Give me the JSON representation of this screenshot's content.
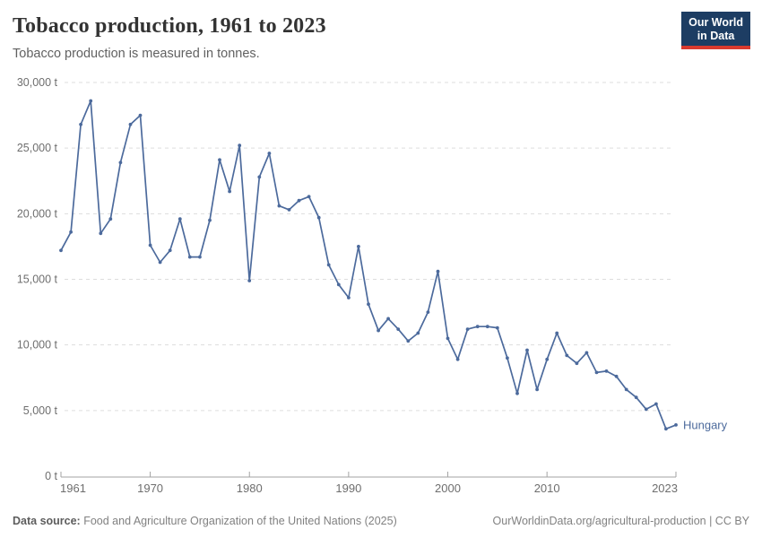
{
  "header": {
    "title": "Tobacco production, 1961 to 2023",
    "subtitle": "Tobacco production is measured in tonnes.",
    "logo": {
      "line1": "Our World",
      "line2": "in Data"
    }
  },
  "footer": {
    "datasource_label": "Data source:",
    "datasource_text": "Food and Agriculture Organization of the United Nations (2025)",
    "credit": "OurWorldinData.org/agricultural-production | CC BY"
  },
  "colors": {
    "line": "#4C6A9C",
    "series_label": "#4C6A9C",
    "grid": "#dddddd",
    "axis": "#a3a3a3",
    "tick_label": "#6e6e6e",
    "logo_bg": "#1d3d63",
    "logo_red": "#d93a2e"
  },
  "chart_data": {
    "type": "line",
    "title": "Tobacco production, 1961 to 2023",
    "subtitle": "Tobacco production is measured in tonnes.",
    "xlabel": "",
    "ylabel": "",
    "unit": "t",
    "xlim": [
      1961,
      2023
    ],
    "ylim": [
      0,
      30000
    ],
    "grid": "horizontal-dashed",
    "legend_position": "end-of-line-label",
    "x_ticks": [
      {
        "value": 1961,
        "label": "1961",
        "align": "start"
      },
      {
        "value": 1970,
        "label": "1970",
        "align": "middle"
      },
      {
        "value": 1980,
        "label": "1980",
        "align": "middle"
      },
      {
        "value": 1990,
        "label": "1990",
        "align": "middle"
      },
      {
        "value": 2000,
        "label": "2000",
        "align": "middle"
      },
      {
        "value": 2010,
        "label": "2010",
        "align": "middle"
      },
      {
        "value": 2023,
        "label": "2023",
        "align": "end"
      }
    ],
    "y_ticks": [
      {
        "value": 0,
        "label": "0 t"
      },
      {
        "value": 5000,
        "label": "5,000 t"
      },
      {
        "value": 10000,
        "label": "10,000 t"
      },
      {
        "value": 15000,
        "label": "15,000 t"
      },
      {
        "value": 20000,
        "label": "20,000 t"
      },
      {
        "value": 25000,
        "label": "25,000 t"
      },
      {
        "value": 30000,
        "label": "30,000 t"
      }
    ],
    "series": [
      {
        "name": "Hungary",
        "x": [
          1961,
          1962,
          1963,
          1964,
          1965,
          1966,
          1967,
          1968,
          1969,
          1970,
          1971,
          1972,
          1973,
          1974,
          1975,
          1976,
          1977,
          1978,
          1979,
          1980,
          1981,
          1982,
          1983,
          1984,
          1985,
          1986,
          1987,
          1988,
          1989,
          1990,
          1991,
          1992,
          1993,
          1994,
          1995,
          1996,
          1997,
          1998,
          1999,
          2000,
          2001,
          2002,
          2003,
          2004,
          2005,
          2006,
          2007,
          2008,
          2009,
          2010,
          2011,
          2012,
          2013,
          2014,
          2015,
          2016,
          2017,
          2018,
          2019,
          2020,
          2021,
          2022,
          2023
        ],
        "values": [
          17200,
          18600,
          26800,
          28600,
          18500,
          19600,
          23900,
          26800,
          27500,
          17600,
          16300,
          17200,
          19600,
          16700,
          16700,
          19500,
          24100,
          21700,
          25200,
          14900,
          22800,
          24600,
          20600,
          20300,
          21000,
          21300,
          19700,
          16100,
          14600,
          13600,
          17500,
          13100,
          11100,
          12000,
          11200,
          10300,
          10900,
          12500,
          15600,
          10500,
          8900,
          11200,
          11400,
          11400,
          11300,
          9000,
          6300,
          9600,
          6600,
          8900,
          10900,
          9200,
          8600,
          9400,
          7900,
          8000,
          7600,
          6600,
          6000,
          5100,
          5500,
          3600,
          3900
        ]
      }
    ]
  }
}
